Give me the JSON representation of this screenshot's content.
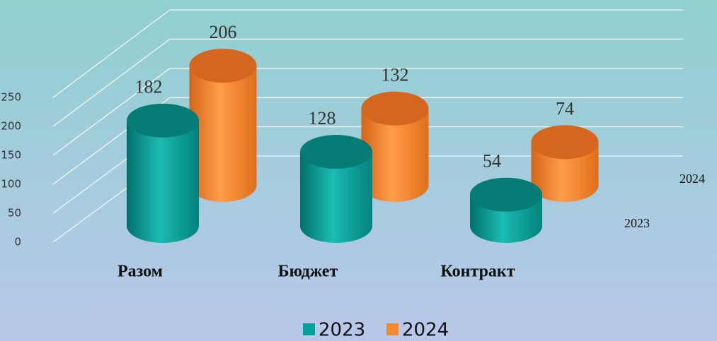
{
  "chart_data": {
    "type": "bar3d",
    "categories": [
      "Разом",
      "Бюджет",
      "Контракт"
    ],
    "series": [
      {
        "name": "2023",
        "color": "#00a19b",
        "values": [
          182,
          128,
          54
        ]
      },
      {
        "name": "2024",
        "color": "#f5892f",
        "values": [
          206,
          132,
          74
        ]
      }
    ],
    "ylim": [
      0,
      250
    ],
    "yticks": [
      0,
      50,
      100,
      150,
      200,
      250
    ],
    "grid": true,
    "legend": "bottom"
  }
}
